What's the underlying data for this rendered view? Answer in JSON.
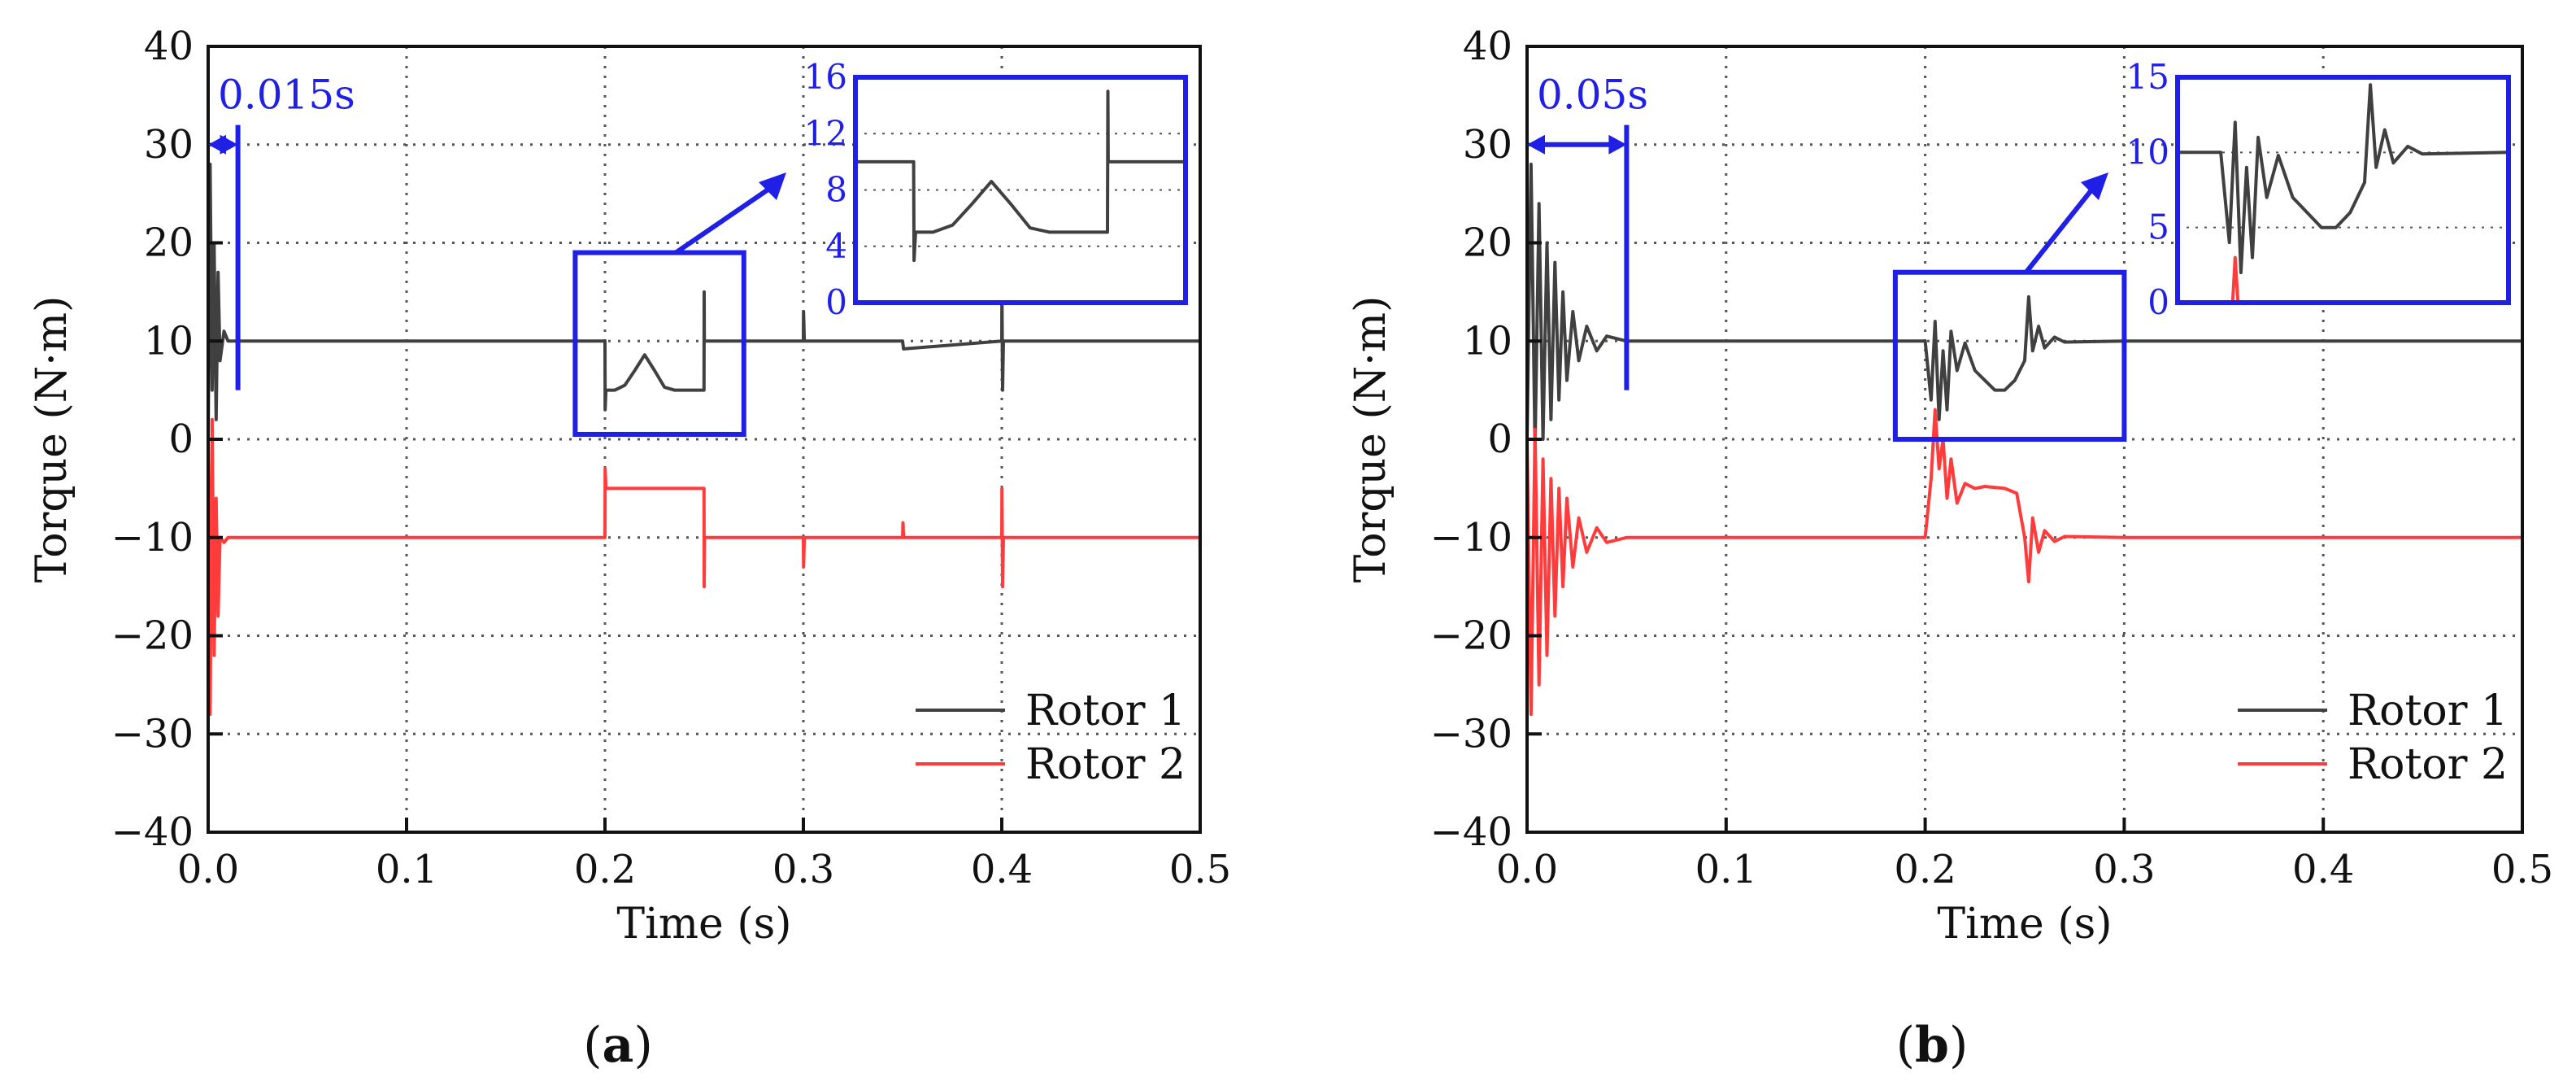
{
  "colors": {
    "rotor1": "#404040",
    "rotor2": "#ff3b3b",
    "annotation": "#1f1fe6",
    "grid": "#555555",
    "axis": "#111111"
  },
  "chart_data": [
    {
      "type": "line",
      "panel_label": "a",
      "xlabel": "Time (s)",
      "ylabel": "Torque (N·m)",
      "xlim": [
        0.0,
        0.5
      ],
      "ylim": [
        -40,
        40
      ],
      "xticks": [
        0.0,
        0.1,
        0.2,
        0.3,
        0.4,
        0.5
      ],
      "xtick_labels": [
        "0.0",
        "0.1",
        "0.2",
        "0.3",
        "0.4",
        "0.5"
      ],
      "yticks": [
        -40,
        -30,
        -20,
        -10,
        0,
        10,
        20,
        30,
        40
      ],
      "ytick_labels": [
        "−40",
        "−30",
        "−20",
        "−10",
        "0",
        "10",
        "20",
        "30",
        "40"
      ],
      "grid": true,
      "legend_position": "bottom-right",
      "series": [
        {
          "name": "Rotor 1",
          "color": "#404040",
          "x": [
            0,
            0.001,
            0.002,
            0.003,
            0.004,
            0.005,
            0.006,
            0.008,
            0.01,
            0.015,
            0.2,
            0.2001,
            0.2005,
            0.205,
            0.21,
            0.215,
            0.22,
            0.225,
            0.23,
            0.235,
            0.24,
            0.245,
            0.2499,
            0.25,
            0.2501,
            0.2505,
            0.3,
            0.3001,
            0.3005,
            0.35,
            0.3505,
            0.4,
            0.4001,
            0.4004,
            0.4008,
            0.5
          ],
          "y": [
            0,
            28,
            5,
            20,
            2,
            17,
            8,
            11,
            10,
            10,
            10,
            3,
            5,
            5,
            5.5,
            7,
            8.6,
            7,
            5.3,
            5,
            5,
            5,
            5,
            15,
            10,
            10,
            10,
            13,
            10,
            10,
            9.2,
            10,
            15,
            5,
            10,
            10
          ]
        },
        {
          "name": "Rotor 2",
          "color": "#ff3b3b",
          "x": [
            0,
            0.001,
            0.002,
            0.003,
            0.004,
            0.005,
            0.006,
            0.008,
            0.01,
            0.015,
            0.2,
            0.2001,
            0.2005,
            0.2499,
            0.25,
            0.2502,
            0.2506,
            0.3,
            0.3001,
            0.3005,
            0.35,
            0.3502,
            0.3505,
            0.4,
            0.4001,
            0.4004,
            0.4008,
            0.4999,
            0.5
          ],
          "y": [
            0,
            -28,
            2,
            -22,
            -6,
            -18,
            -10,
            -10.5,
            -10,
            -10,
            -10,
            -3,
            -5,
            -5,
            -15,
            -10,
            -10,
            -10,
            -13,
            -10,
            -10,
            -8.5,
            -10,
            -10,
            -5,
            -15,
            -10,
            -10,
            -13
          ]
        }
      ],
      "annotation": {
        "label": "0.015s",
        "x_start": 0.0,
        "x_end": 0.015,
        "y": 30
      },
      "zoom_box": {
        "x": [
          0.185,
          0.27
        ],
        "y": [
          0.5,
          19
        ]
      },
      "inset": {
        "ylim": [
          0,
          16
        ],
        "yticks": [
          0,
          4,
          8,
          12,
          16
        ],
        "ytick_labels": [
          "0",
          "4",
          "8",
          "12",
          "16"
        ]
      }
    },
    {
      "type": "line",
      "panel_label": "b",
      "xlabel": "Time (s)",
      "ylabel": "Torque (N·m)",
      "xlim": [
        0.0,
        0.5
      ],
      "ylim": [
        -40,
        40
      ],
      "xticks": [
        0.0,
        0.1,
        0.2,
        0.3,
        0.4,
        0.5
      ],
      "xtick_labels": [
        "0.0",
        "0.1",
        "0.2",
        "0.3",
        "0.4",
        "0.5"
      ],
      "yticks": [
        -40,
        -30,
        -20,
        -10,
        0,
        10,
        20,
        30,
        40
      ],
      "ytick_labels": [
        "−40",
        "−30",
        "−20",
        "−10",
        "0",
        "10",
        "20",
        "30",
        "40"
      ],
      "grid": true,
      "legend_position": "bottom-right",
      "series": [
        {
          "name": "Rotor 1",
          "color": "#404040",
          "x": [
            0,
            0.002,
            0.004,
            0.006,
            0.008,
            0.01,
            0.012,
            0.014,
            0.016,
            0.018,
            0.02,
            0.023,
            0.026,
            0.03,
            0.035,
            0.04,
            0.05,
            0.2,
            0.203,
            0.205,
            0.207,
            0.209,
            0.211,
            0.213,
            0.216,
            0.22,
            0.225,
            0.23,
            0.235,
            0.24,
            0.245,
            0.25,
            0.252,
            0.254,
            0.257,
            0.26,
            0.265,
            0.27,
            0.3,
            0.5
          ],
          "y": [
            0,
            28,
            -1,
            24,
            0,
            20,
            2,
            18,
            4,
            15,
            6,
            13,
            8,
            11.5,
            9,
            10.5,
            10,
            10,
            4,
            12,
            2,
            9,
            3,
            11,
            7,
            9.8,
            7,
            6,
            5,
            5,
            6,
            8,
            14.5,
            9,
            11.5,
            9.3,
            10.4,
            9.9,
            10,
            10
          ]
        },
        {
          "name": "Rotor 2",
          "color": "#ff3b3b",
          "x": [
            0,
            0.002,
            0.004,
            0.006,
            0.008,
            0.01,
            0.012,
            0.014,
            0.016,
            0.018,
            0.02,
            0.023,
            0.026,
            0.03,
            0.035,
            0.04,
            0.05,
            0.2,
            0.203,
            0.205,
            0.207,
            0.209,
            0.211,
            0.213,
            0.216,
            0.22,
            0.225,
            0.23,
            0.24,
            0.246,
            0.25,
            0.252,
            0.254,
            0.257,
            0.26,
            0.265,
            0.27,
            0.3,
            0.5
          ],
          "y": [
            0,
            -28,
            1,
            -25,
            -2,
            -22,
            -4,
            -18,
            -5,
            -15,
            -6,
            -13,
            -8,
            -11.5,
            -9,
            -10.5,
            -10,
            -10,
            -4,
            3,
            -3,
            0,
            -6,
            -2,
            -6.5,
            -4.5,
            -5,
            -4.8,
            -5,
            -5.5,
            -10,
            -14.5,
            -8,
            -11.5,
            -9.3,
            -10.4,
            -9.9,
            -10,
            -10
          ]
        }
      ],
      "annotation": {
        "label": "0.05s",
        "x_start": 0.0,
        "x_end": 0.05,
        "y": 30
      },
      "zoom_box": {
        "x": [
          0.185,
          0.3
        ],
        "y": [
          0,
          17
        ]
      },
      "inset": {
        "ylim": [
          0,
          15
        ],
        "yticks": [
          0,
          5,
          10,
          15
        ],
        "ytick_labels": [
          "0",
          "5",
          "10",
          "15"
        ]
      }
    }
  ],
  "legend": {
    "items": [
      "Rotor 1",
      "Rotor 2"
    ]
  }
}
